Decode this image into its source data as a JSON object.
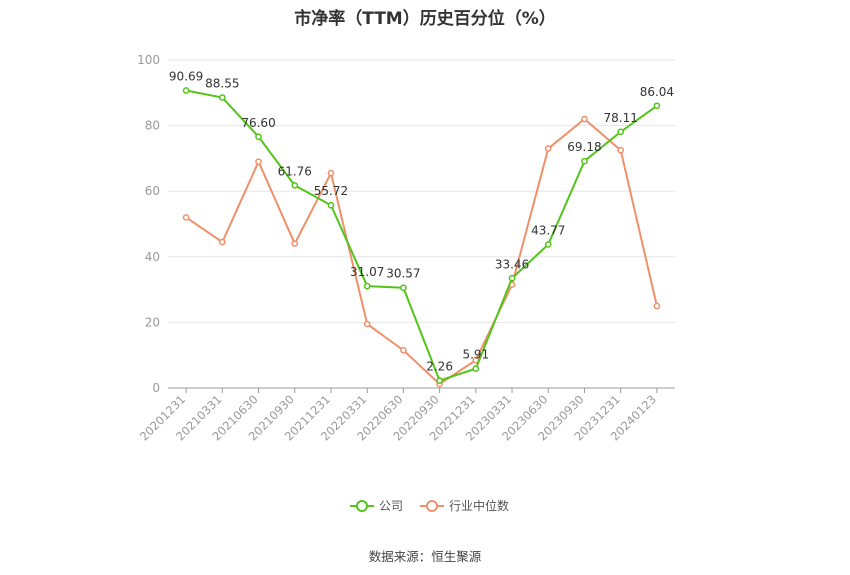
{
  "chart_data": {
    "type": "line",
    "title": "市净率（TTM）历史百分位（%）",
    "categories": [
      "20201231",
      "20210331",
      "20210630",
      "20210930",
      "20211231",
      "20220331",
      "20220630",
      "20220930",
      "20221231",
      "20230331",
      "20230630",
      "20230930",
      "20231231",
      "20240123"
    ],
    "series": [
      {
        "name": "公司",
        "color": "#52c41a",
        "values": [
          90.69,
          88.55,
          76.6,
          61.76,
          55.72,
          31.07,
          30.57,
          2.26,
          5.91,
          33.46,
          43.77,
          69.18,
          78.11,
          86.04
        ],
        "labels": [
          "90.69",
          "88.55",
          "76.60",
          "61.76",
          "55.72",
          "31.07",
          "30.57",
          "2.26",
          "5.91",
          "33.46",
          "43.77",
          "69.18",
          "78.11",
          "86.04"
        ]
      },
      {
        "name": "行业中位数",
        "color": "#f0906a",
        "values": [
          52,
          44.5,
          69,
          44,
          65.5,
          19.5,
          11.5,
          1.2,
          8.5,
          31.5,
          73,
          82,
          72.5,
          25
        ]
      }
    ],
    "yticks": [
      "0",
      "20",
      "40",
      "60",
      "80",
      "100"
    ],
    "ylim": [
      0,
      100
    ],
    "grid": true,
    "legend": "bottom-center"
  },
  "footer": {
    "source": "数据来源：恒生聚源"
  }
}
